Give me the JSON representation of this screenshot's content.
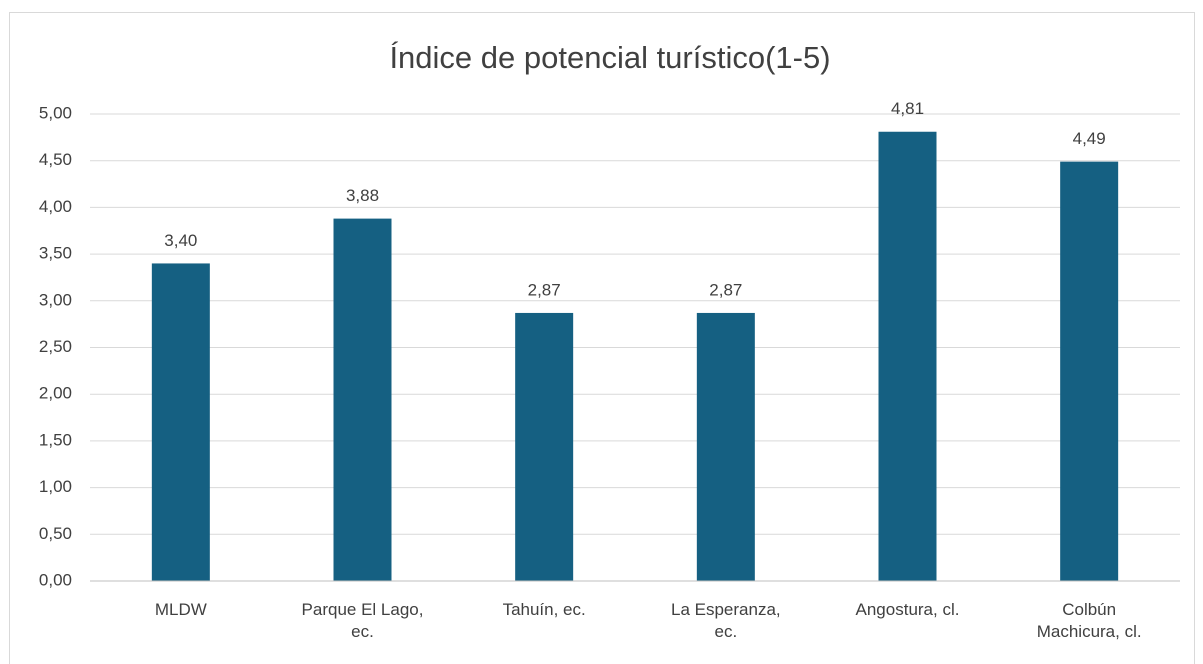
{
  "chart_data": {
    "type": "bar",
    "title": "Índice de potencial turístico(1-5)",
    "categories": [
      "MLDW",
      "Parque El Lago, ec.",
      "Tahuín, ec.",
      "La Esperanza, ec.",
      "Angostura, cl.",
      "Colbún Machicura, cl."
    ],
    "values": [
      3.4,
      3.88,
      2.87,
      2.87,
      4.81,
      4.49
    ],
    "value_labels": [
      "3,40",
      "3,88",
      "2,87",
      "2,87",
      "4,81",
      "4,49"
    ],
    "color": "#156082",
    "ylim": [
      0,
      5
    ],
    "yticks": [
      {
        "value": 0,
        "label": "0,00"
      },
      {
        "value": 0.5,
        "label": "0,50"
      },
      {
        "value": 1,
        "label": "1,00"
      },
      {
        "value": 1.5,
        "label": "1,50"
      },
      {
        "value": 2,
        "label": "2,00"
      },
      {
        "value": 2.5,
        "label": "2,50"
      },
      {
        "value": 3,
        "label": "3,00"
      },
      {
        "value": 3.5,
        "label": "3,50"
      },
      {
        "value": 4,
        "label": "4,00"
      },
      {
        "value": 4.5,
        "label": "4,50"
      },
      {
        "value": 5,
        "label": "5,00"
      }
    ],
    "grid": true
  }
}
